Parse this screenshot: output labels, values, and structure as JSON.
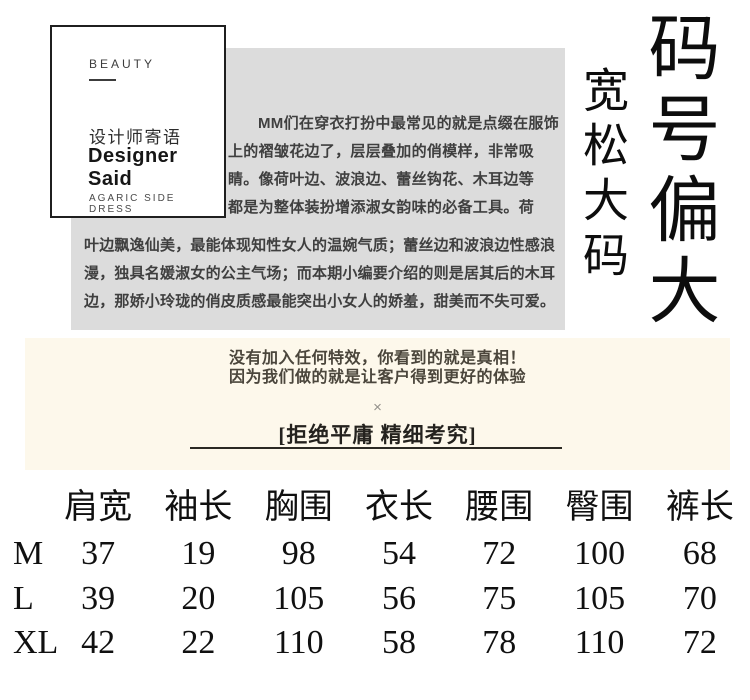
{
  "designer_card": {
    "eyebrow": "BEAUTY",
    "title_zh": "设计师寄语",
    "title_en": "Designer Said",
    "footer": "AGARIC SIDE DRESS"
  },
  "intro": {
    "narrow_lines": [
      "MM们在穿衣打扮中最常见的就是点缀在服饰",
      "上的褶皱花边了，层层叠加的俏模样，非常吸",
      "睛。像荷叶边、波浪边、蕾丝钩花、木耳边等",
      "都是为整体装扮增添淑女韵味的必备工具。荷"
    ],
    "wide_lines": [
      "叶边飘逸仙美，最能体现知性女人的温婉气质；蕾丝边和波浪边性感浪",
      "漫，独具名媛淑女的公主气场；而本期小编要介绍的则是居其后的木耳",
      "边，那娇小玲珑的俏皮质感最能突出小女人的娇羞，甜美而不失可爱。"
    ]
  },
  "side_text": {
    "primary": "码号偏大",
    "secondary": "宽松大码"
  },
  "promise": {
    "line1": "没有加入任何特效，你看到的就是真相！",
    "line2": "因为我们做的就是让客户得到更好的体验",
    "divider_mark": "×",
    "slogan": "[拒绝平庸 精细考究]"
  },
  "size_chart": {
    "columns": [
      "肩宽",
      "袖长",
      "胸围",
      "衣长",
      "腰围",
      "臀围",
      "裤长"
    ],
    "rows": [
      {
        "label": "M",
        "values": [
          37,
          19,
          98,
          54,
          72,
          100,
          68
        ]
      },
      {
        "label": "L",
        "values": [
          39,
          20,
          105,
          56,
          75,
          105,
          70
        ]
      },
      {
        "label": "XL",
        "values": [
          42,
          22,
          110,
          58,
          78,
          110,
          72
        ]
      }
    ]
  },
  "colors": {
    "gray_panel": "#dcdcdc",
    "beige_panel": "#fdf8eb",
    "paragraph_text": "#3f3f3f",
    "ink": "#101010"
  }
}
